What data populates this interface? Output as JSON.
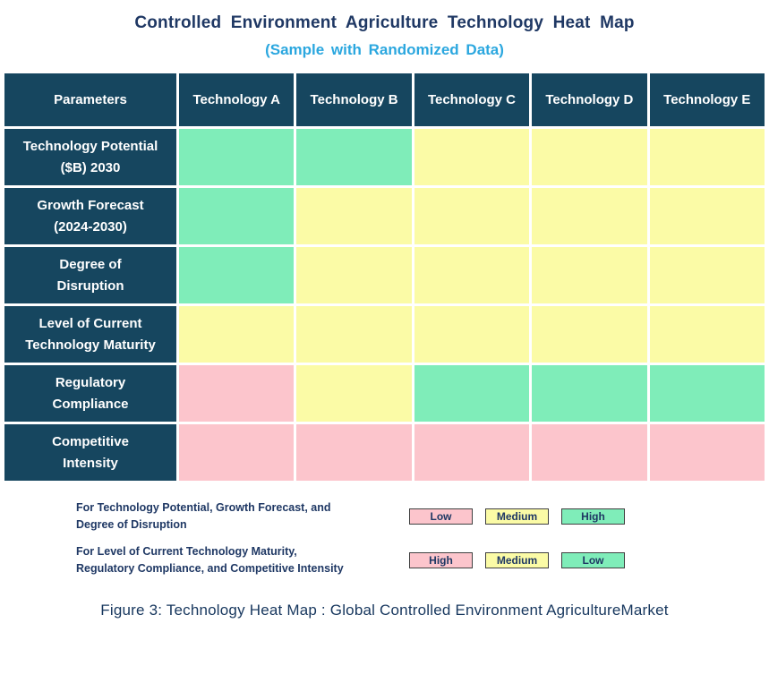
{
  "title": "Controlled Environment Agriculture Technology Heat Map",
  "subtitle": "(Sample with Randomized Data)",
  "caption": "Figure 3: Technology Heat Map :  Global Controlled Environment AgricultureMarket",
  "colors": {
    "header_bg": "#16465F",
    "title_navy": "#1F3864",
    "subtitle_cyan": "#2BA7DF",
    "green": "#7FEDB9",
    "yellow": "#FBFBA6",
    "pink": "#FCC5CC"
  },
  "chart_data": {
    "type": "heatmap",
    "columns": [
      "Parameters",
      "Technology A",
      "Technology B",
      "Technology C",
      "Technology D",
      "Technology E"
    ],
    "colors": {
      "green": "#7FEDB9",
      "yellow": "#FBFBA6",
      "pink": "#FCC5CC"
    },
    "rows": [
      {
        "label": "Technology Potential ($B) 2030",
        "label_lines": [
          "Technology Potential",
          "($B) 2030"
        ],
        "cells": [
          "green",
          "green",
          "yellow",
          "yellow",
          "yellow"
        ]
      },
      {
        "label": "Growth Forecast (2024-2030)",
        "label_lines": [
          "Growth Forecast",
          "(2024-2030)"
        ],
        "cells": [
          "green",
          "yellow",
          "yellow",
          "yellow",
          "yellow"
        ]
      },
      {
        "label": "Degree of Disruption",
        "label_lines": [
          "Degree of",
          "Disruption"
        ],
        "cells": [
          "green",
          "yellow",
          "yellow",
          "yellow",
          "yellow"
        ]
      },
      {
        "label": "Level of Current Technology Maturity",
        "label_lines": [
          "Level of Current",
          "Technology Maturity"
        ],
        "cells": [
          "yellow",
          "yellow",
          "yellow",
          "yellow",
          "yellow"
        ]
      },
      {
        "label": "Regulatory Compliance",
        "label_lines": [
          "Regulatory",
          "Compliance"
        ],
        "cells": [
          "pink",
          "yellow",
          "green",
          "green",
          "green"
        ]
      },
      {
        "label": "Competitive Intensity",
        "label_lines": [
          "Competitive",
          "Intensity"
        ],
        "cells": [
          "pink",
          "pink",
          "pink",
          "pink",
          "pink"
        ]
      }
    ]
  },
  "legend": [
    {
      "label": "For Technology Potential, Growth Forecast, and Degree of Disruption",
      "label_lines": [
        "For Technology Potential, Growth Forecast, and",
        "Degree of Disruption"
      ],
      "items": [
        {
          "label": "Low",
          "color": "pink"
        },
        {
          "label": "Medium",
          "color": "yellow"
        },
        {
          "label": "High",
          "color": "green"
        }
      ]
    },
    {
      "label": "For Level of Current Technology Maturity, Regulatory Compliance, and Competitive Intensity",
      "label_lines": [
        "For Level of Current Technology Maturity,",
        "Regulatory Compliance, and Competitive Intensity"
      ],
      "items": [
        {
          "label": "High",
          "color": "pink"
        },
        {
          "label": "Medium",
          "color": "yellow"
        },
        {
          "label": "Low",
          "color": "green"
        }
      ]
    }
  ]
}
